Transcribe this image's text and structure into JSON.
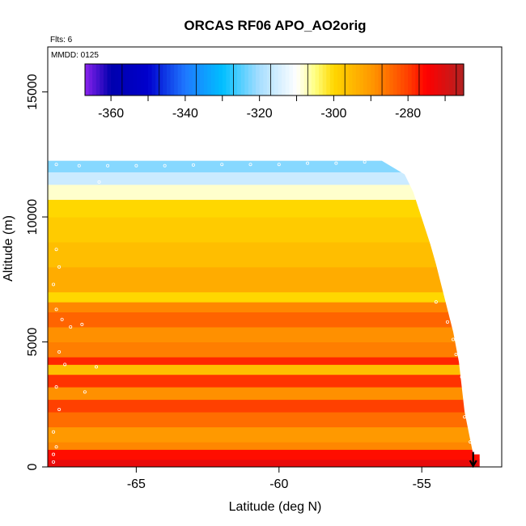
{
  "chart_data": {
    "type": "heatmap",
    "title": "ORCAS RF06 APO_AO2orig",
    "xlabel": "Latitude (deg N)",
    "ylabel": "Altitude (m)",
    "annotations": {
      "flights": "Flts: 6",
      "date": "MMDD: 0125"
    },
    "xlim": [
      -68.1,
      -52.2
    ],
    "ylim": [
      0,
      16800
    ],
    "x_ticks": [
      {
        "value": -65,
        "label": "-65"
      },
      {
        "value": -60,
        "label": "-60"
      },
      {
        "value": -55,
        "label": "-55"
      }
    ],
    "y_ticks": [
      {
        "value": 0,
        "label": "0"
      },
      {
        "value": 5000,
        "label": "5000"
      },
      {
        "value": 10000,
        "label": "10000"
      },
      {
        "value": 15000,
        "label": "15000"
      }
    ],
    "colorbar": {
      "range": [
        -367,
        -265
      ],
      "ticks": [
        {
          "value": -360,
          "label": "-360"
        },
        {
          "value": -340,
          "label": "-340"
        },
        {
          "value": -320,
          "label": "-320"
        },
        {
          "value": -300,
          "label": "-300"
        },
        {
          "value": -280,
          "label": "-280"
        }
      ],
      "stops": [
        {
          "value": -367,
          "color": "#8b22ee"
        },
        {
          "value": -360,
          "color": "#0000ad"
        },
        {
          "value": -350,
          "color": "#0000cd"
        },
        {
          "value": -340,
          "color": "#1e78ff"
        },
        {
          "value": -330,
          "color": "#00bfff"
        },
        {
          "value": -320,
          "color": "#a8deff"
        },
        {
          "value": -310,
          "color": "#ffffff"
        },
        {
          "value": -305,
          "color": "#ffff80"
        },
        {
          "value": -300,
          "color": "#ffd700"
        },
        {
          "value": -290,
          "color": "#ff9900"
        },
        {
          "value": -280,
          "color": "#ff4000"
        },
        {
          "value": -275,
          "color": "#ff0000"
        },
        {
          "value": -265,
          "color": "#b22222"
        }
      ]
    },
    "envelope_max_altitude": [
      {
        "lat": -68.1,
        "alt": 12250
      },
      {
        "lat": -56.4,
        "alt": 12250
      },
      {
        "lat": -55.6,
        "alt": 11700
      },
      {
        "lat": -55.3,
        "alt": 11000
      },
      {
        "lat": -55.1,
        "alt": 10300
      },
      {
        "lat": -54.9,
        "alt": 9600
      },
      {
        "lat": -54.7,
        "alt": 8900
      },
      {
        "lat": -54.5,
        "alt": 8100
      },
      {
        "lat": -54.3,
        "alt": 7200
      },
      {
        "lat": -54.1,
        "alt": 6300
      },
      {
        "lat": -53.9,
        "alt": 5400
      },
      {
        "lat": -53.7,
        "alt": 4200
      },
      {
        "lat": -53.5,
        "alt": 2200
      },
      {
        "lat": -53.2,
        "alt": 500
      }
    ],
    "layers": [
      {
        "alt_bottom": 0,
        "alt_top": 300,
        "value": -272
      },
      {
        "alt_bottom": 300,
        "alt_top": 700,
        "value": -276
      },
      {
        "alt_bottom": 700,
        "alt_top": 1000,
        "value": -288
      },
      {
        "alt_bottom": 1000,
        "alt_top": 1600,
        "value": -290
      },
      {
        "alt_bottom": 1600,
        "alt_top": 2200,
        "value": -285
      },
      {
        "alt_bottom": 2200,
        "alt_top": 2700,
        "value": -280
      },
      {
        "alt_bottom": 2700,
        "alt_top": 3200,
        "value": -289
      },
      {
        "alt_bottom": 3200,
        "alt_top": 3700,
        "value": -279
      },
      {
        "alt_bottom": 3700,
        "alt_top": 4100,
        "value": -296
      },
      {
        "alt_bottom": 4100,
        "alt_top": 4400,
        "value": -278
      },
      {
        "alt_bottom": 4400,
        "alt_top": 5000,
        "value": -287
      },
      {
        "alt_bottom": 5000,
        "alt_top": 5600,
        "value": -289
      },
      {
        "alt_bottom": 5600,
        "alt_top": 6200,
        "value": -284
      },
      {
        "alt_bottom": 6200,
        "alt_top": 6600,
        "value": -288
      },
      {
        "alt_bottom": 6600,
        "alt_top": 7000,
        "value": -300
      },
      {
        "alt_bottom": 7000,
        "alt_top": 8000,
        "value": -293
      },
      {
        "alt_bottom": 8000,
        "alt_top": 9000,
        "value": -296
      },
      {
        "alt_bottom": 9000,
        "alt_top": 10000,
        "value": -298
      },
      {
        "alt_bottom": 10000,
        "alt_top": 10700,
        "value": -300
      },
      {
        "alt_bottom": 10700,
        "alt_top": 11300,
        "value": -308
      },
      {
        "alt_bottom": 11300,
        "alt_top": 11800,
        "value": -316
      },
      {
        "alt_bottom": 11800,
        "alt_top": 12250,
        "value": -322
      }
    ],
    "flight_path_points": [
      {
        "lat": -67.8,
        "alt": 12100
      },
      {
        "lat": -67.0,
        "alt": 12050
      },
      {
        "lat": -66.0,
        "alt": 12050
      },
      {
        "lat": -65.0,
        "alt": 12050
      },
      {
        "lat": -64.0,
        "alt": 12050
      },
      {
        "lat": -63.0,
        "alt": 12080
      },
      {
        "lat": -62.0,
        "alt": 12100
      },
      {
        "lat": -61.0,
        "alt": 12100
      },
      {
        "lat": -60.0,
        "alt": 12100
      },
      {
        "lat": -59.0,
        "alt": 12150
      },
      {
        "lat": -58.0,
        "alt": 12150
      },
      {
        "lat": -57.0,
        "alt": 12200
      },
      {
        "lat": -66.3,
        "alt": 11400
      },
      {
        "lat": -67.8,
        "alt": 8700
      },
      {
        "lat": -67.7,
        "alt": 8000
      },
      {
        "lat": -67.9,
        "alt": 7300
      },
      {
        "lat": -67.8,
        "alt": 6300
      },
      {
        "lat": -67.6,
        "alt": 5900
      },
      {
        "lat": -67.3,
        "alt": 5600
      },
      {
        "lat": -66.9,
        "alt": 5700
      },
      {
        "lat": -67.7,
        "alt": 4600
      },
      {
        "lat": -67.5,
        "alt": 4100
      },
      {
        "lat": -66.4,
        "alt": 4000
      },
      {
        "lat": -67.8,
        "alt": 3200
      },
      {
        "lat": -66.8,
        "alt": 3000
      },
      {
        "lat": -67.7,
        "alt": 2300
      },
      {
        "lat": -67.9,
        "alt": 1400
      },
      {
        "lat": -67.8,
        "alt": 800
      },
      {
        "lat": -67.9,
        "alt": 500
      },
      {
        "lat": -67.9,
        "alt": 200
      },
      {
        "lat": -54.5,
        "alt": 6600
      },
      {
        "lat": -54.1,
        "alt": 5800
      },
      {
        "lat": -53.9,
        "alt": 5100
      },
      {
        "lat": -53.8,
        "alt": 4500
      },
      {
        "lat": -53.6,
        "alt": 3600
      },
      {
        "lat": -53.5,
        "alt": 2000
      },
      {
        "lat": -53.3,
        "alt": 1000
      }
    ],
    "marker": {
      "lat": -53.2,
      "alt_start": 600,
      "alt_end": 0
    }
  }
}
